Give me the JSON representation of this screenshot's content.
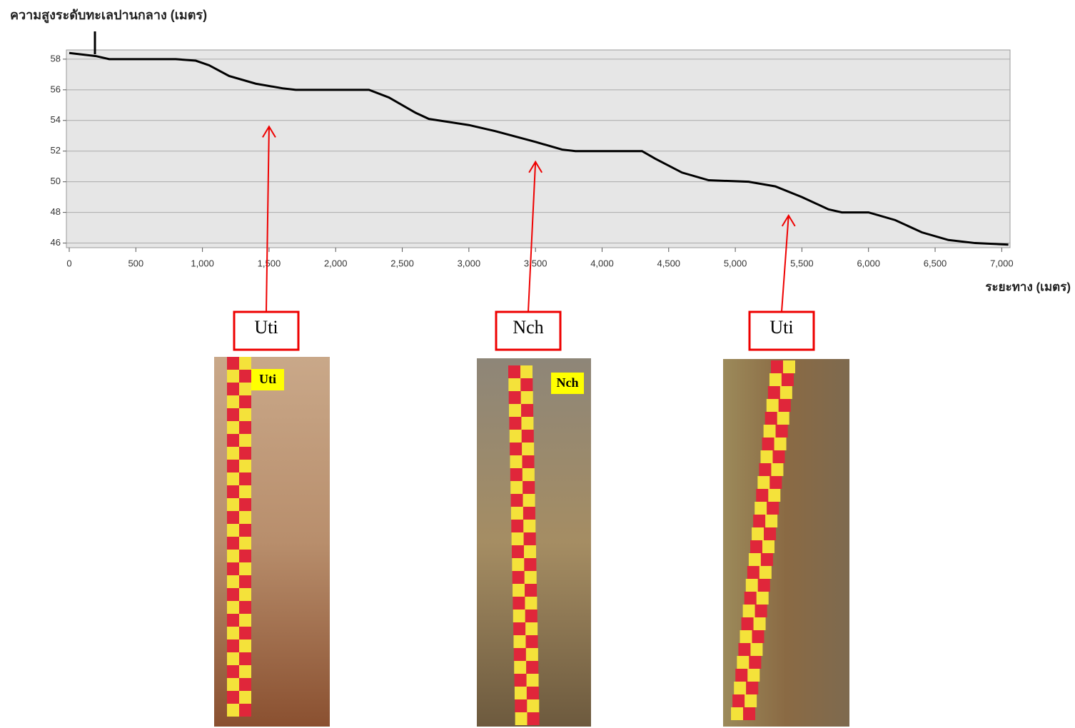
{
  "chart_data": {
    "type": "line",
    "y_label": "ความสูงระดับทะเลปานกลาง (เมตร)",
    "x_label": "ระยะทาง (เมตร)",
    "x": [
      0,
      200,
      300,
      500,
      800,
      950,
      1050,
      1200,
      1400,
      1600,
      1700,
      2000,
      2250,
      2400,
      2600,
      2700,
      3000,
      3200,
      3500,
      3700,
      3800,
      4000,
      4300,
      4400,
      4600,
      4800,
      5100,
      5300,
      5500,
      5700,
      5800,
      6000,
      6200,
      6400,
      6600,
      6800,
      7050
    ],
    "values": [
      58.4,
      58.2,
      58.0,
      58.0,
      58.0,
      57.9,
      57.6,
      56.9,
      56.4,
      56.1,
      56.0,
      56.0,
      56.0,
      55.5,
      54.5,
      54.1,
      53.7,
      53.3,
      52.6,
      52.1,
      52.0,
      52.0,
      52.0,
      51.5,
      50.6,
      50.1,
      50.0,
      49.7,
      49.0,
      48.2,
      48.0,
      48.0,
      47.5,
      46.7,
      46.2,
      46.0,
      45.9
    ],
    "color": "#000000",
    "xlim": [
      0,
      7100
    ],
    "ylim": [
      45.7,
      58.6
    ],
    "xticks": [
      0,
      500,
      {
        "value": 1000,
        "label": "1,000"
      },
      {
        "value": 1500,
        "label": "1,500"
      },
      {
        "value": 2000,
        "label": "2,000"
      },
      {
        "value": 2500,
        "label": "2,500"
      },
      {
        "value": 3000,
        "label": "3,000"
      },
      {
        "value": 3500,
        "label": "3,500"
      },
      {
        "value": 4000,
        "label": "4,000"
      },
      {
        "value": 4500,
        "label": "4,500"
      },
      {
        "value": 5000,
        "label": "5,000"
      },
      {
        "value": 5500,
        "label": "5,500"
      },
      {
        "value": 6000,
        "label": "6,000"
      },
      {
        "value": 6500,
        "label": "6,500"
      },
      {
        "value": 7000,
        "label": "7,000"
      }
    ],
    "yticks": [
      46,
      48,
      50,
      52,
      54,
      56,
      58
    ],
    "grid": true,
    "annotations": [
      {
        "label": "Uti",
        "x": 1500,
        "y": 53.6
      },
      {
        "label": "Nch",
        "x": 3500,
        "y": 51.3
      },
      {
        "label": "Uti",
        "x": 5400,
        "y": 47.8
      }
    ],
    "photo_labels": [
      "Uti",
      "Nch"
    ]
  }
}
